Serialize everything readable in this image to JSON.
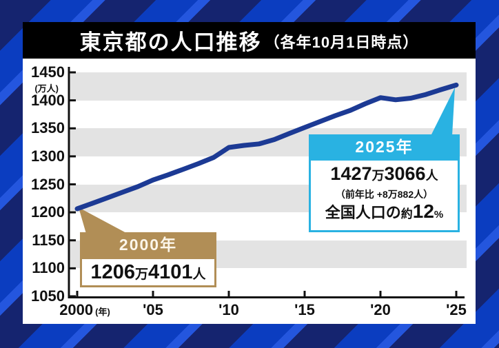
{
  "banner": {
    "title": "東京都の人口推移",
    "subtitle": "（各年10月1日時点）"
  },
  "y_axis": {
    "unit": "(万人)",
    "ticks": [
      "1450",
      "1400",
      "1350",
      "1300",
      "1250",
      "1200",
      "1150",
      "1100",
      "1050"
    ],
    "tick_values": [
      1450,
      1400,
      1350,
      1300,
      1250,
      1200,
      1150,
      1100,
      1050
    ]
  },
  "x_axis": {
    "unit": "(年)",
    "ticks": [
      "2000",
      "'05",
      "'10",
      "'15",
      "'20",
      "'25"
    ],
    "tick_years": [
      2000,
      2005,
      2010,
      2015,
      2020,
      2025
    ]
  },
  "chart_data": {
    "type": "line",
    "title": "東京都の人口推移（各年10月1日時点）",
    "xlabel": "年",
    "ylabel": "万人",
    "xlim": [
      2000,
      2025
    ],
    "ylim": [
      1050,
      1450
    ],
    "y_tick_step": 50,
    "grid": "banded",
    "legend": "none",
    "line_color": "#1c3a94",
    "gray_bands": [
      [
        1400,
        1450
      ],
      [
        1300,
        1350
      ],
      [
        1200,
        1250
      ],
      [
        1100,
        1150
      ]
    ],
    "x": [
      2000,
      2001,
      2002,
      2003,
      2004,
      2005,
      2006,
      2007,
      2008,
      2009,
      2010,
      2011,
      2012,
      2013,
      2014,
      2015,
      2016,
      2017,
      2018,
      2019,
      2020,
      2021,
      2022,
      2023,
      2024,
      2025
    ],
    "values": [
      1206.4,
      1216,
      1226,
      1236,
      1246,
      1257.7,
      1267,
      1277,
      1287,
      1298,
      1315.9,
      1319.5,
      1322.3,
      1330,
      1341,
      1351.5,
      1362,
      1372.5,
      1382,
      1394,
      1404.8,
      1401.0,
      1403.8,
      1410.5,
      1419.2,
      1427.3
    ],
    "annotations": [
      {
        "year": 2000,
        "value": 1206.4,
        "text": "2000年 1206万4101人"
      },
      {
        "year": 2025,
        "value": 1427.3,
        "text": "2025年 1427万3066人（前年比 +8万882人）全国人口の約12%"
      }
    ]
  },
  "callouts": {
    "c2000": {
      "header": "2000年",
      "num1": "1206",
      "unit1": "万",
      "num2": "4101",
      "unit2": "人"
    },
    "c2025": {
      "header": "2025年",
      "num1": "1427",
      "unit1": "万",
      "num2": "3066",
      "unit2": "人",
      "yoy": "（前年比 +8万882人）",
      "share_prefix": "全国人口の",
      "share_about": "約",
      "share_value": "12",
      "share_unit": "%"
    }
  },
  "colors": {
    "background_stripe_dark": "#15246f",
    "background_stripe_blue": "#0b3dc0",
    "background_stripe_light": "#2456de",
    "banner_bg": "#000000",
    "banner_text": "#ffffff",
    "panel_bg": "#ffffff",
    "band_gray": "#e3e3e3",
    "axis_color": "#111111",
    "line_color": "#1c3a94",
    "gold": "#b18e56",
    "cyan": "#29b2e2"
  }
}
